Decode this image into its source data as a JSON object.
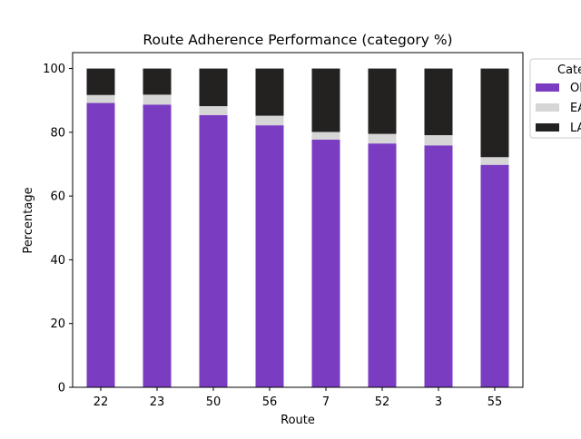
{
  "chart_data": {
    "type": "bar",
    "stacked": true,
    "title": "Route Adherence Performance (category %)",
    "xlabel": "Route",
    "ylabel": "Percentage",
    "ylim": [
      0,
      105
    ],
    "yticks": [
      0,
      20,
      40,
      60,
      80,
      100
    ],
    "grid": false,
    "categories": [
      "22",
      "23",
      "50",
      "56",
      "7",
      "52",
      "3",
      "55"
    ],
    "legend": {
      "title": "Cate",
      "placement": "outside-top-right"
    },
    "series": [
      {
        "name": "OI",
        "color": "#7a3dc2",
        "values": [
          89.2,
          88.7,
          85.4,
          82.2,
          77.7,
          76.5,
          75.9,
          69.8
        ]
      },
      {
        "name": "EA",
        "color": "#d6d6d6",
        "values": [
          2.5,
          3.1,
          2.8,
          3.0,
          2.4,
          3.0,
          3.2,
          2.4
        ]
      },
      {
        "name": "LA",
        "color": "#242121",
        "values": [
          8.3,
          8.2,
          11.8,
          14.8,
          19.9,
          20.5,
          20.9,
          27.8
        ]
      }
    ]
  }
}
